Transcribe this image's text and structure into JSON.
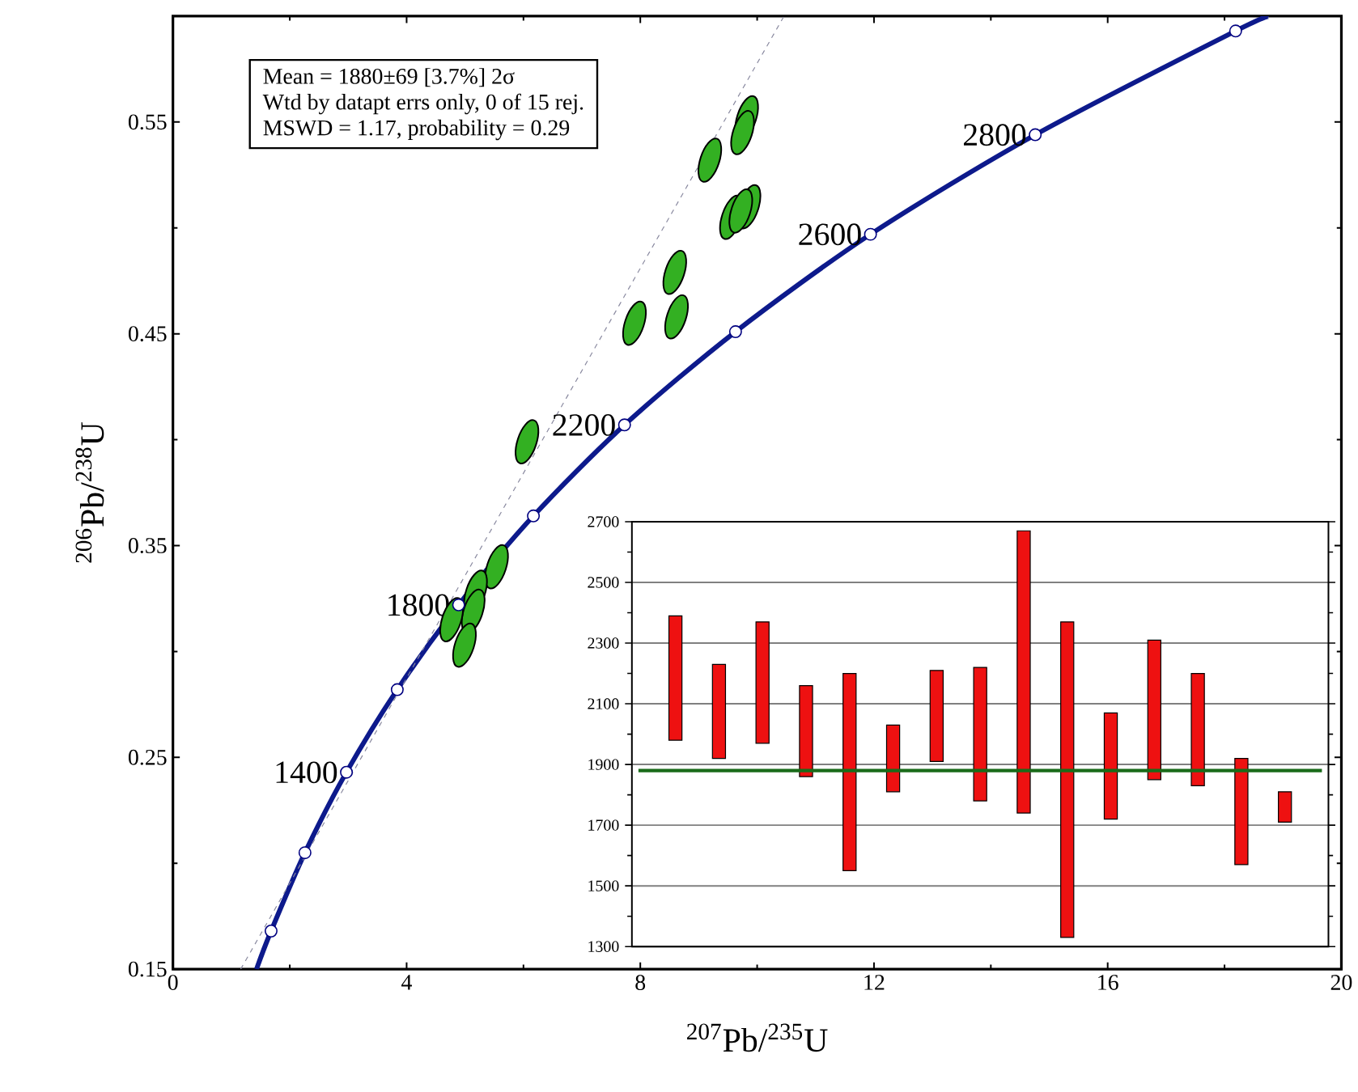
{
  "chart_data": [
    {
      "type": "line",
      "xlabel": "$^{207}$Pb/$^{235}$U",
      "ylabel": "$^{206}$Pb/$^{238}$U",
      "xlim": [
        0,
        20
      ],
      "ylim": [
        0.15,
        0.6
      ],
      "xticks": [
        0,
        4,
        8,
        12,
        16,
        20
      ],
      "yticks": [
        0.15,
        0.25,
        0.35,
        0.45,
        0.55
      ],
      "grid": false,
      "series": [
        {
          "type": "line",
          "color": "#0d1a8c",
          "marker": "none",
          "line_style": "solid",
          "x": [
            1.43,
            1.68,
            2.26,
            2.97,
            3.84,
            4.89,
            6.17,
            7.73,
            9.63,
            11.94,
            14.76,
            18.19,
            18.77
          ],
          "values": [
            0.15,
            0.168,
            0.205,
            0.243,
            0.282,
            0.322,
            0.364,
            0.407,
            0.451,
            0.497,
            0.544,
            0.593,
            0.6
          ]
        },
        {
          "type": "line",
          "color": "#8a8aa0",
          "marker": "none",
          "line_style": "dashed",
          "x": [
            1.16,
            10.46
          ],
          "values": [
            0.15,
            0.6
          ]
        },
        {
          "type": "scatter",
          "color": "#33b022",
          "x": [
            6.06,
            7.9,
            8.62,
            8.59,
            9.19,
            9.82,
            9.75,
            9.86,
            9.56,
            9.72,
            5.54,
            5.18,
            5.14,
            4.77,
            4.99
          ],
          "values": [
            0.399,
            0.455,
            0.458,
            0.479,
            0.532,
            0.552,
            0.545,
            0.51,
            0.505,
            0.508,
            0.34,
            0.328,
            0.319,
            0.315,
            0.303
          ]
        },
        {
          "type": "scatter",
          "color": "#ffffff",
          "marker": "circle",
          "x": [
            1.68,
            2.26,
            2.97,
            3.84,
            4.89,
            6.17,
            7.73,
            9.63,
            11.94,
            14.76,
            18.19
          ],
          "values": [
            0.168,
            0.205,
            0.243,
            0.282,
            0.322,
            0.364,
            0.407,
            0.451,
            0.497,
            0.544,
            0.593
          ]
        }
      ],
      "annotations": [
        "Mean = 1880±69  [3.7%]  2σ",
        "Wtd by datapt errs only, 0 of 15 rej.",
        "MSWD = 1.17, probability = 0.29",
        {
          "text": "1400",
          "x": 2.97,
          "y": 0.243
        },
        {
          "text": "1800",
          "x": 4.89,
          "y": 0.322
        },
        {
          "text": "2200",
          "x": 7.73,
          "y": 0.407
        },
        {
          "text": "2600",
          "x": 11.94,
          "y": 0.497
        },
        {
          "text": "2800",
          "x": 14.76,
          "y": 0.544
        }
      ]
    },
    {
      "type": "bar",
      "categories": [
        null,
        null,
        null,
        null,
        null,
        null,
        null,
        null,
        null,
        null,
        null,
        null,
        null,
        null,
        null
      ],
      "color": "#ee1111",
      "base": [
        1980,
        1920,
        1970,
        1860,
        1550,
        1810,
        1910,
        1780,
        1740,
        1330,
        1720,
        1850,
        1830,
        1570,
        1710
      ],
      "values": [
        410,
        310,
        400,
        300,
        650,
        220,
        300,
        440,
        930,
        1040,
        350,
        460,
        370,
        350,
        100
      ],
      "ylim": [
        1300,
        2700
      ],
      "yticks": [
        1300,
        1500,
        1700,
        1900,
        2100,
        2300,
        2500,
        2700
      ],
      "grid": "y",
      "tick_labels": "y",
      "ref_lines": [
        {
          "axis": "y",
          "value": 1880,
          "color": "#1a6b1a"
        }
      ]
    }
  ]
}
